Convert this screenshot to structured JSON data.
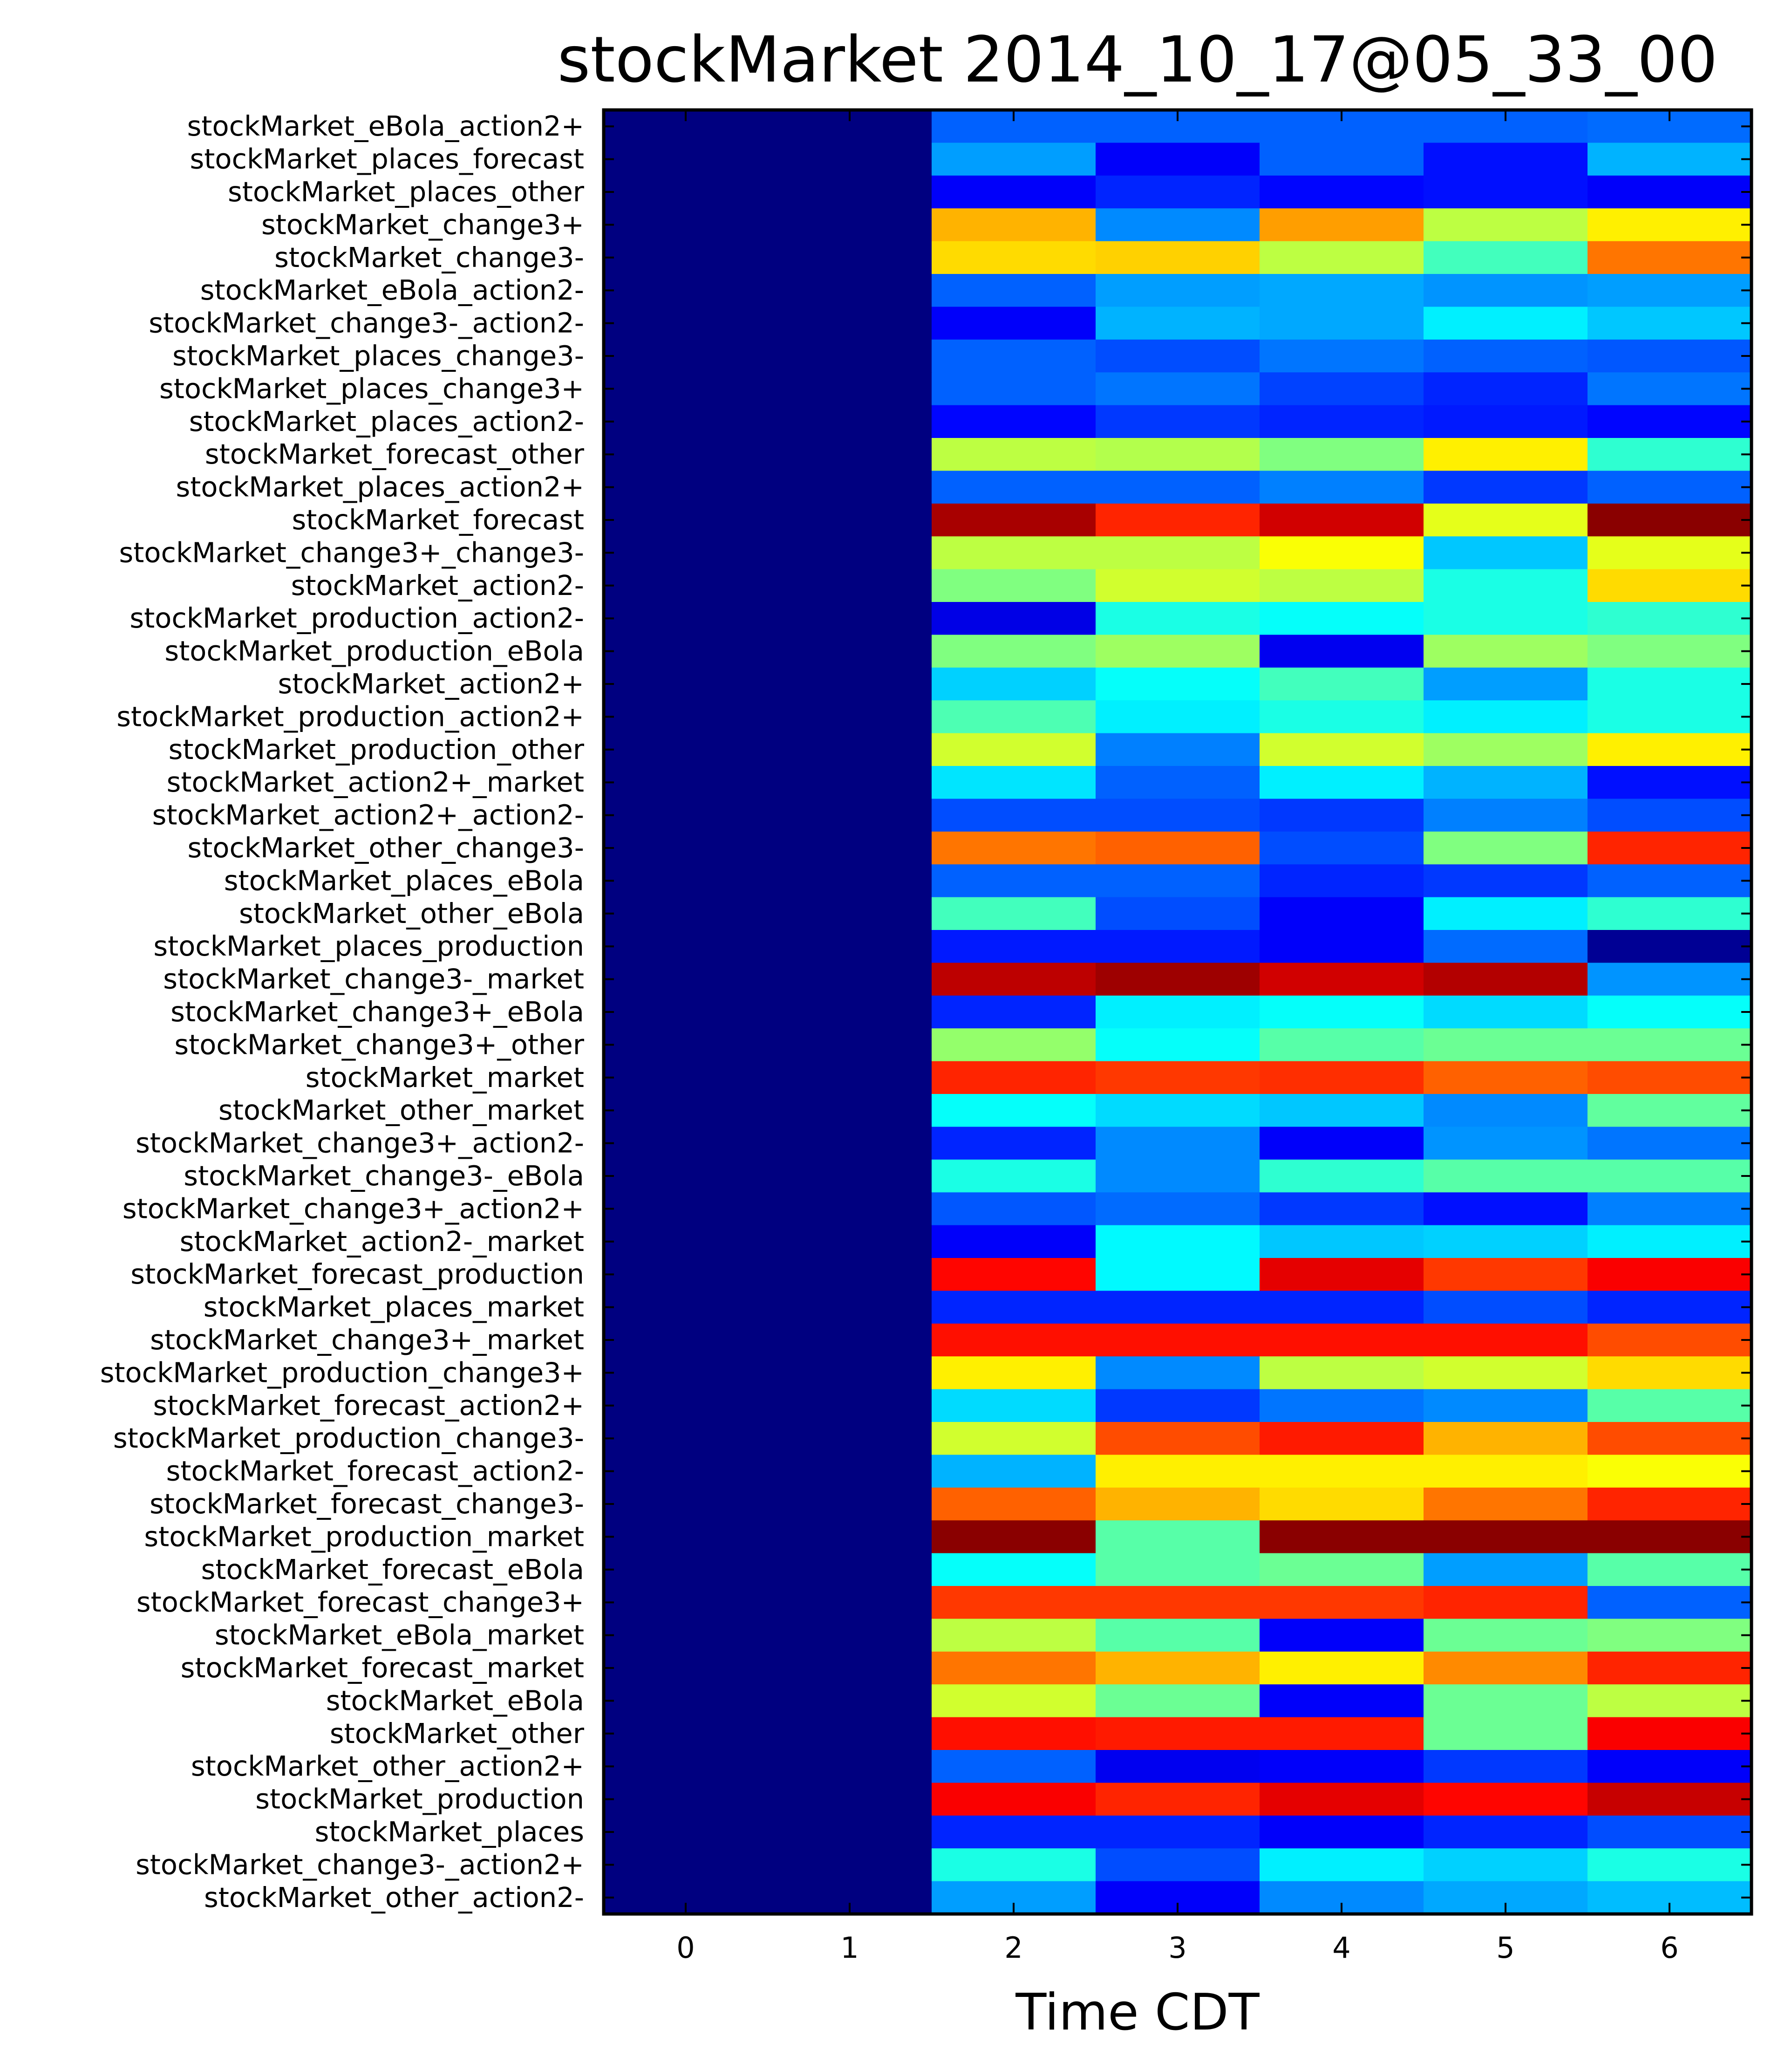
{
  "chart_data": {
    "type": "heatmap",
    "title": "stockMarket   2014_10_17@05_33_00",
    "xlabel": "Time CDT",
    "ylabel": "",
    "colormap": "jet",
    "vrange": [
      0,
      1
    ],
    "x": [
      0,
      1,
      2,
      3,
      4,
      5,
      6
    ],
    "x_ticks": [
      "0",
      "1",
      "2",
      "3",
      "4",
      "5",
      "6"
    ],
    "rows": [
      {
        "label": "stockMarket_eBola_action2+",
        "values": [
          0,
          0,
          0.22,
          0.22,
          0.22,
          0.22,
          0.23
        ]
      },
      {
        "label": "stockMarket_places_forecast",
        "values": [
          0,
          0,
          0.28,
          0.12,
          0.22,
          0.14,
          0.3
        ]
      },
      {
        "label": "stockMarket_places_other",
        "values": [
          0,
          0,
          0.12,
          0.16,
          0.13,
          0.14,
          0.12
        ]
      },
      {
        "label": "stockMarket_change3+",
        "values": [
          0,
          0,
          0.7,
          0.26,
          0.72,
          0.56,
          0.64
        ]
      },
      {
        "label": "stockMarket_change3-",
        "values": [
          0,
          0,
          0.66,
          0.67,
          0.56,
          0.44,
          0.76
        ]
      },
      {
        "label": "stockMarket_eBola_action2-",
        "values": [
          0,
          0,
          0.22,
          0.28,
          0.29,
          0.27,
          0.28
        ]
      },
      {
        "label": "stockMarket_change3-_action2-",
        "values": [
          0,
          0,
          0.12,
          0.3,
          0.29,
          0.36,
          0.32
        ]
      },
      {
        "label": "stockMarket_places_change3-",
        "values": [
          0,
          0,
          0.22,
          0.2,
          0.24,
          0.22,
          0.21
        ]
      },
      {
        "label": "stockMarket_places_change3+",
        "values": [
          0,
          0,
          0.22,
          0.24,
          0.19,
          0.16,
          0.24
        ]
      },
      {
        "label": "stockMarket_places_action2-",
        "values": [
          0,
          0,
          0.13,
          0.18,
          0.16,
          0.15,
          0.13
        ]
      },
      {
        "label": "stockMarket_forecast_other",
        "values": [
          0,
          0,
          0.56,
          0.55,
          0.5,
          0.64,
          0.42
        ]
      },
      {
        "label": "stockMarket_places_action2+",
        "values": [
          0,
          0,
          0.22,
          0.22,
          0.25,
          0.18,
          0.22
        ]
      },
      {
        "label": "stockMarket_forecast",
        "values": [
          0,
          0,
          0.96,
          0.84,
          0.92,
          0.6,
          0.99
        ]
      },
      {
        "label": "stockMarket_change3+_change3-",
        "values": [
          0,
          0,
          0.56,
          0.56,
          0.62,
          0.32,
          0.6
        ]
      },
      {
        "label": "stockMarket_action2-",
        "values": [
          0,
          0,
          0.5,
          0.58,
          0.56,
          0.4,
          0.66
        ]
      },
      {
        "label": "stockMarket_production_action2-",
        "values": [
          0,
          0,
          0.1,
          0.4,
          0.38,
          0.4,
          0.42
        ]
      },
      {
        "label": "stockMarket_production_eBola",
        "values": [
          0,
          0,
          0.5,
          0.53,
          0.11,
          0.53,
          0.5
        ]
      },
      {
        "label": "stockMarket_action2+",
        "values": [
          0,
          0,
          0.33,
          0.38,
          0.44,
          0.28,
          0.4
        ]
      },
      {
        "label": "stockMarket_production_action2+",
        "values": [
          0,
          0,
          0.45,
          0.36,
          0.4,
          0.36,
          0.4
        ]
      },
      {
        "label": "stockMarket_production_other",
        "values": [
          0,
          0,
          0.58,
          0.25,
          0.58,
          0.53,
          0.64
        ]
      },
      {
        "label": "stockMarket_action2+_market",
        "values": [
          0,
          0,
          0.35,
          0.22,
          0.36,
          0.3,
          0.14
        ]
      },
      {
        "label": "stockMarket_action2+_action2-",
        "values": [
          0,
          0,
          0.2,
          0.2,
          0.18,
          0.25,
          0.2
        ]
      },
      {
        "label": "stockMarket_other_change3-",
        "values": [
          0,
          0,
          0.76,
          0.78,
          0.2,
          0.5,
          0.84
        ]
      },
      {
        "label": "stockMarket_places_eBola",
        "values": [
          0,
          0,
          0.22,
          0.22,
          0.16,
          0.18,
          0.22
        ]
      },
      {
        "label": "stockMarket_other_eBola",
        "values": [
          0,
          0,
          0.44,
          0.2,
          0.12,
          0.36,
          0.42
        ]
      },
      {
        "label": "stockMarket_places_production",
        "values": [
          0,
          0,
          0.15,
          0.15,
          0.12,
          0.23,
          0.02
        ]
      },
      {
        "label": "stockMarket_change3-_market",
        "values": [
          0,
          0,
          0.94,
          0.97,
          0.92,
          0.95,
          0.27
        ]
      },
      {
        "label": "stockMarket_change3+_eBola",
        "values": [
          0,
          0,
          0.16,
          0.36,
          0.38,
          0.34,
          0.38
        ]
      },
      {
        "label": "stockMarket_change3+_other",
        "values": [
          0,
          0,
          0.52,
          0.38,
          0.46,
          0.48,
          0.48
        ]
      },
      {
        "label": "stockMarket_market",
        "values": [
          0,
          0,
          0.84,
          0.82,
          0.83,
          0.78,
          0.8
        ]
      },
      {
        "label": "stockMarket_other_market",
        "values": [
          0,
          0,
          0.38,
          0.34,
          0.32,
          0.26,
          0.47
        ]
      },
      {
        "label": "stockMarket_change3+_action2-",
        "values": [
          0,
          0,
          0.16,
          0.26,
          0.12,
          0.27,
          0.24
        ]
      },
      {
        "label": "stockMarket_change3-_eBola",
        "values": [
          0,
          0,
          0.4,
          0.26,
          0.42,
          0.46,
          0.46
        ]
      },
      {
        "label": "stockMarket_change3+_action2+",
        "values": [
          0,
          0,
          0.21,
          0.23,
          0.18,
          0.14,
          0.25
        ]
      },
      {
        "label": "stockMarket_action2-_market",
        "values": [
          0,
          0,
          0.12,
          0.37,
          0.32,
          0.33,
          0.36
        ]
      },
      {
        "label": "stockMarket_forecast_production",
        "values": [
          0,
          0,
          0.87,
          0.37,
          0.9,
          0.82,
          0.88
        ]
      },
      {
        "label": "stockMarket_places_market",
        "values": [
          0,
          0,
          0.16,
          0.16,
          0.16,
          0.2,
          0.16
        ]
      },
      {
        "label": "stockMarket_change3+_market",
        "values": [
          0,
          0,
          0.86,
          0.86,
          0.86,
          0.86,
          0.8
        ]
      },
      {
        "label": "stockMarket_production_change3+",
        "values": [
          0,
          0,
          0.64,
          0.26,
          0.56,
          0.58,
          0.66
        ]
      },
      {
        "label": "stockMarket_forecast_action2+",
        "values": [
          0,
          0,
          0.34,
          0.18,
          0.24,
          0.26,
          0.46
        ]
      },
      {
        "label": "stockMarket_production_change3-",
        "values": [
          0,
          0,
          0.58,
          0.8,
          0.85,
          0.7,
          0.8
        ]
      },
      {
        "label": "stockMarket_forecast_action2-",
        "values": [
          0,
          0,
          0.3,
          0.64,
          0.64,
          0.64,
          0.62
        ]
      },
      {
        "label": "stockMarket_forecast_change3-",
        "values": [
          0,
          0,
          0.78,
          0.7,
          0.66,
          0.76,
          0.84
        ]
      },
      {
        "label": "stockMarket_production_market",
        "values": [
          0,
          0,
          0.99,
          0.46,
          0.99,
          0.99,
          0.99
        ]
      },
      {
        "label": "stockMarket_forecast_eBola",
        "values": [
          0,
          0,
          0.38,
          0.46,
          0.48,
          0.28,
          0.46
        ]
      },
      {
        "label": "stockMarket_forecast_change3+",
        "values": [
          0,
          0,
          0.82,
          0.82,
          0.82,
          0.84,
          0.22
        ]
      },
      {
        "label": "stockMarket_eBola_market",
        "values": [
          0,
          0,
          0.56,
          0.46,
          0.12,
          0.48,
          0.5
        ]
      },
      {
        "label": "stockMarket_forecast_market",
        "values": [
          0,
          0,
          0.76,
          0.7,
          0.64,
          0.74,
          0.84
        ]
      },
      {
        "label": "stockMarket_eBola",
        "values": [
          0,
          0,
          0.58,
          0.48,
          0.12,
          0.48,
          0.56
        ]
      },
      {
        "label": "stockMarket_other",
        "values": [
          0,
          0,
          0.86,
          0.85,
          0.85,
          0.48,
          0.88
        ]
      },
      {
        "label": "stockMarket_other_action2+",
        "values": [
          0,
          0,
          0.22,
          0.11,
          0.12,
          0.18,
          0.12
        ]
      },
      {
        "label": "stockMarket_production",
        "values": [
          0,
          0,
          0.88,
          0.84,
          0.9,
          0.87,
          0.93
        ]
      },
      {
        "label": "stockMarket_places",
        "values": [
          0,
          0,
          0.16,
          0.16,
          0.12,
          0.16,
          0.2
        ]
      },
      {
        "label": "stockMarket_change3-_action2+",
        "values": [
          0,
          0,
          0.4,
          0.2,
          0.36,
          0.33,
          0.4
        ]
      },
      {
        "label": "stockMarket_other_action2-",
        "values": [
          0,
          0,
          0.28,
          0.12,
          0.26,
          0.29,
          0.31
        ]
      }
    ]
  }
}
